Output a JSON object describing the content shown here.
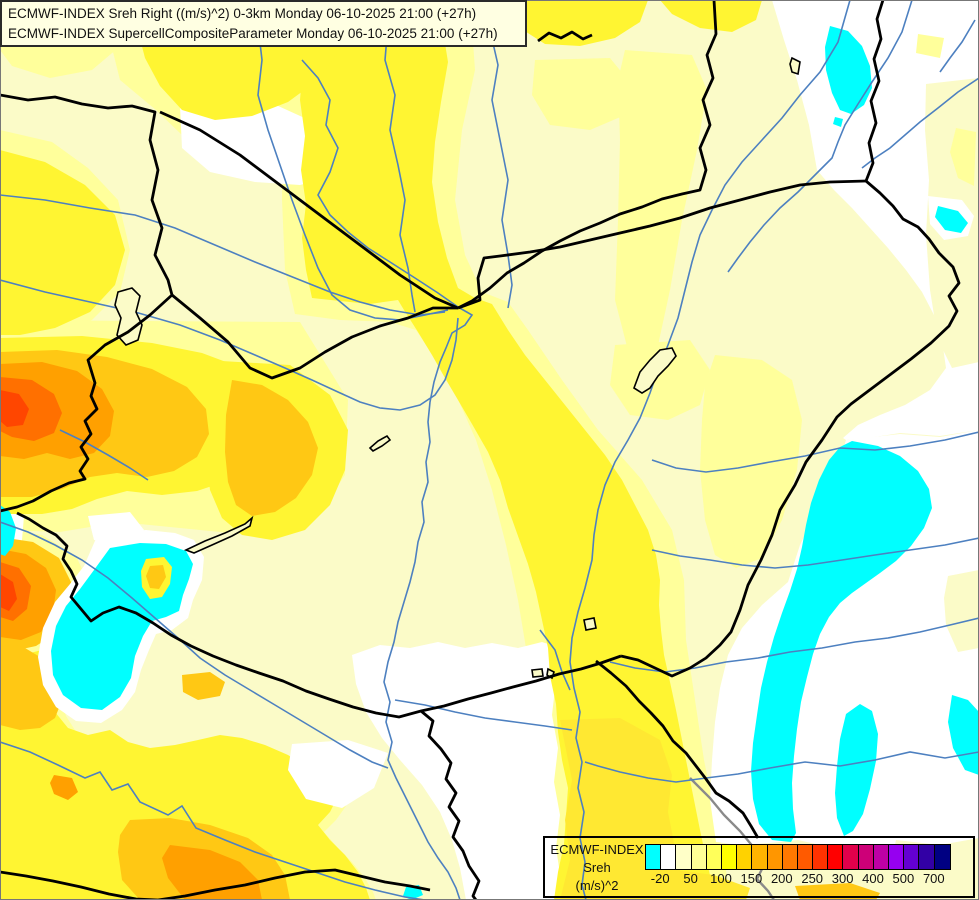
{
  "title_box": {
    "line1": "ECMWF-INDEX Sreh Right ((m/s)^2) 0-3km Monday 06-10-2025 21:00 (+27h)",
    "line2": "ECMWF-INDEX SupercellCompositeParameter Monday 06-10-2025 21:00 (+27h)"
  },
  "legend": {
    "title": "ECMWF-INDEX",
    "param": "Sreh",
    "units": "(m/s)^2",
    "ticks": [
      "-20",
      "50",
      "100",
      "150",
      "200",
      "250",
      "300",
      "400",
      "500",
      "700"
    ],
    "tick_boundaries": [
      1,
      3,
      5,
      7,
      9,
      11,
      13,
      15,
      17,
      19
    ],
    "palette": [
      "#00FFFF",
      "#FFFFFF",
      "#FFFFC8",
      "#FFFF96",
      "#FFFF5A",
      "#FFFF00",
      "#FFD200",
      "#FFB400",
      "#FF9600",
      "#FF7800",
      "#FF5A00",
      "#FF3200",
      "#FF0000",
      "#E1004B",
      "#CD0078",
      "#BE00A5",
      "#9600F0",
      "#6400D2",
      "#3200A5",
      "#000082"
    ]
  },
  "map_colors": {
    "base": "#FBFBC8",
    "pale_band": "#FFFF9B",
    "bright_yellow": "#FFF532",
    "deep_yellow": "#FFE832",
    "gold": "#FFC814",
    "orange": "#FFA000",
    "deep_orange": "#FF7000",
    "red_orange": "#FF4600",
    "white": "#FFFFFF",
    "cyan": "#00FFFF",
    "river": "#4D80C0",
    "border": "#000000",
    "gray_line": "#8A8A8A",
    "frame": "#777777"
  }
}
